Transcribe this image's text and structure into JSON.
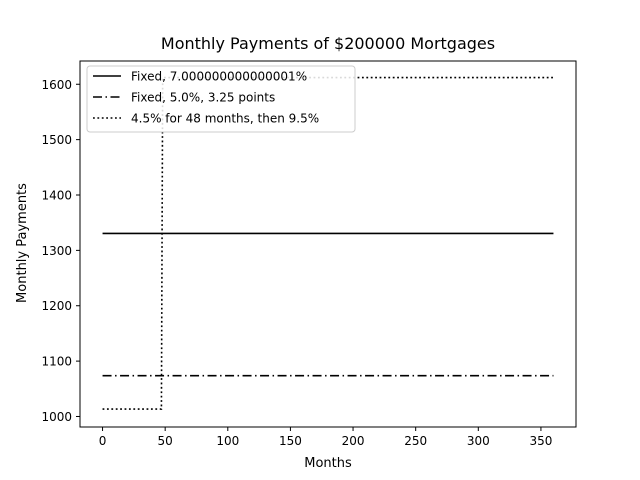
{
  "chart_data": {
    "type": "line",
    "title": "Monthly Payments of $200000 Mortgages",
    "xlabel": "Months",
    "ylabel": "Monthly Payments",
    "xlim": [
      -18,
      378
    ],
    "ylim": [
      981,
      1642
    ],
    "xticks": [
      0,
      50,
      100,
      150,
      200,
      250,
      300,
      350
    ],
    "yticks": [
      1000,
      1100,
      1200,
      1300,
      1400,
      1500,
      1600
    ],
    "grid": false,
    "legend_position": "top-left",
    "series": [
      {
        "name": "Fixed, 7.000000000000001%",
        "style": "solid",
        "color": "#000000",
        "points": [
          [
            0,
            1330.6
          ],
          [
            360,
            1330.6
          ]
        ]
      },
      {
        "name": "Fixed, 5.0%, 3.25 points",
        "style": "dashdot",
        "color": "#000000",
        "points": [
          [
            0,
            1073.6
          ],
          [
            360,
            1073.6
          ]
        ]
      },
      {
        "name": "4.5% for 48 months, then 9.5%",
        "style": "dotted",
        "color": "#000000",
        "points": [
          [
            0,
            1013.4
          ],
          [
            47,
            1013.4
          ],
          [
            48,
            1612
          ],
          [
            360,
            1612
          ]
        ]
      }
    ]
  }
}
